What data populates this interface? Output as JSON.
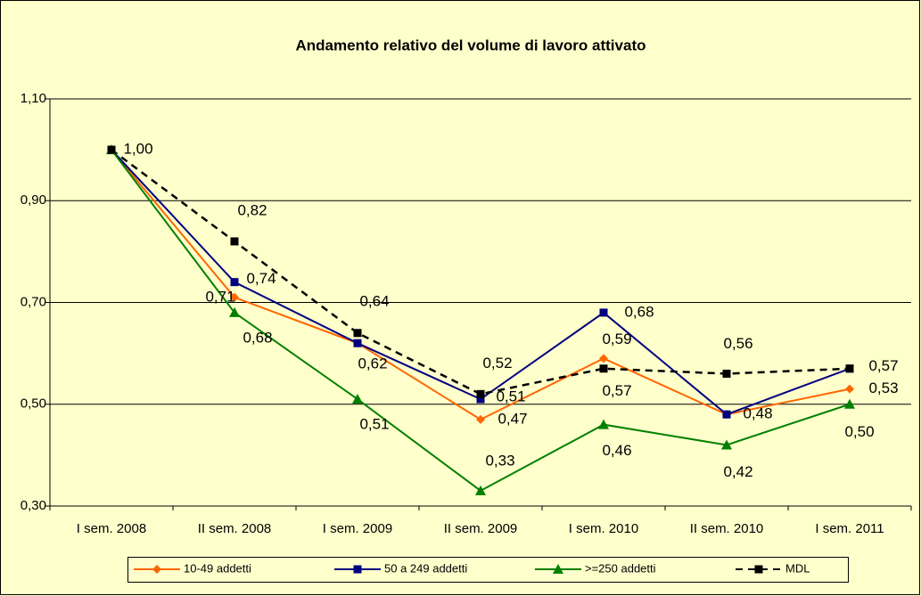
{
  "chart_data": {
    "type": "line",
    "title": "Andamento relativo del volume di lavoro attivato",
    "categories": [
      "I sem. 2008",
      "II sem. 2008",
      "I sem. 2009",
      "II sem. 2009",
      "I sem. 2010",
      "II sem. 2010",
      "I sem. 2011"
    ],
    "series": [
      {
        "name": "10-49 addetti",
        "color": "#ff6600",
        "marker": "diamond",
        "dashed": false,
        "values": [
          1.0,
          0.71,
          0.62,
          0.47,
          0.59,
          0.48,
          0.53
        ],
        "value_labels": [
          null,
          "0,71",
          "0,62",
          "0,47",
          "0,59",
          null,
          "0,53"
        ]
      },
      {
        "name": "50 a 249 addetti",
        "color": "#000080",
        "marker": "square",
        "dashed": false,
        "values": [
          1.0,
          0.74,
          0.62,
          0.51,
          0.68,
          0.48,
          0.57
        ],
        "value_labels": [
          null,
          "0,74",
          null,
          "0,51",
          "0,68",
          "0,48",
          null
        ]
      },
      {
        "name": ">=250 addetti",
        "color": "#008000",
        "marker": "triangle",
        "dashed": false,
        "values": [
          1.0,
          0.68,
          0.51,
          0.33,
          0.46,
          0.42,
          0.5
        ],
        "value_labels": [
          null,
          "0,68",
          "0,51",
          "0,33",
          "0,46",
          "0,42",
          "0,50"
        ]
      },
      {
        "name": "MDL",
        "color": "#000000",
        "marker": "square",
        "dashed": true,
        "values": [
          1.0,
          0.82,
          0.64,
          0.52,
          0.57,
          0.56,
          0.57
        ],
        "value_labels": [
          "1,00",
          "0,82",
          "0,64",
          "0,52",
          "0,57",
          "0,56",
          "0,57"
        ]
      }
    ],
    "ylim": [
      0.3,
      1.1
    ],
    "yticks": [
      {
        "value": 0.3,
        "label": "0,30"
      },
      {
        "value": 0.5,
        "label": "0,50"
      },
      {
        "value": 0.7,
        "label": "0,70"
      },
      {
        "value": 0.9,
        "label": "0,90"
      },
      {
        "value": 1.1,
        "label": "1,10"
      }
    ],
    "grid": true,
    "legend": "bottom"
  }
}
